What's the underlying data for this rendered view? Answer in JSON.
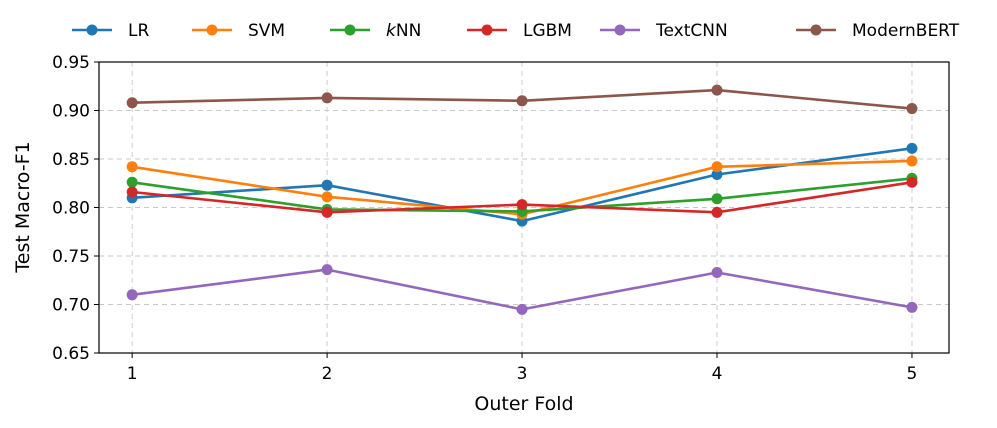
{
  "chart_data": {
    "type": "line",
    "title": "",
    "xlabel": "Outer Fold",
    "ylabel": "Test Macro-F1",
    "categories": [
      "1",
      "2",
      "3",
      "4",
      "5"
    ],
    "x": [
      1,
      2,
      3,
      4,
      5
    ],
    "xlim": [
      0.83,
      5.19
    ],
    "ylim": [
      0.65,
      0.95
    ],
    "yticks": [
      0.65,
      0.7,
      0.75,
      0.8,
      0.85,
      0.9,
      0.95
    ],
    "ytick_labels": [
      "0.65",
      "0.70",
      "0.75",
      "0.80",
      "0.85",
      "0.90",
      "0.95"
    ],
    "grid": true,
    "legend_position": "top, above plot",
    "series": [
      {
        "name": "LR",
        "italic_prefix": "",
        "label_rest": "LR",
        "color": "#1f77b4",
        "values": [
          0.81,
          0.823,
          0.786,
          0.834,
          0.861
        ]
      },
      {
        "name": "SVM",
        "italic_prefix": "",
        "label_rest": "SVM",
        "color": "#ff7f0e",
        "values": [
          0.842,
          0.811,
          0.793,
          0.842,
          0.848
        ]
      },
      {
        "name": "kNN",
        "italic_prefix": "k",
        "label_rest": "NN",
        "color": "#2ca02c",
        "values": [
          0.826,
          0.798,
          0.796,
          0.809,
          0.83
        ]
      },
      {
        "name": "LGBM",
        "italic_prefix": "",
        "label_rest": "LGBM",
        "color": "#d62728",
        "values": [
          0.816,
          0.795,
          0.803,
          0.795,
          0.826
        ]
      },
      {
        "name": "TextCNN",
        "italic_prefix": "",
        "label_rest": "TextCNN",
        "color": "#9467bd",
        "values": [
          0.71,
          0.736,
          0.695,
          0.733,
          0.697
        ]
      },
      {
        "name": "ModernBERT",
        "italic_prefix": "",
        "label_rest": "ModernBERT",
        "color": "#8c564b",
        "values": [
          0.908,
          0.913,
          0.91,
          0.921,
          0.902
        ]
      }
    ]
  }
}
